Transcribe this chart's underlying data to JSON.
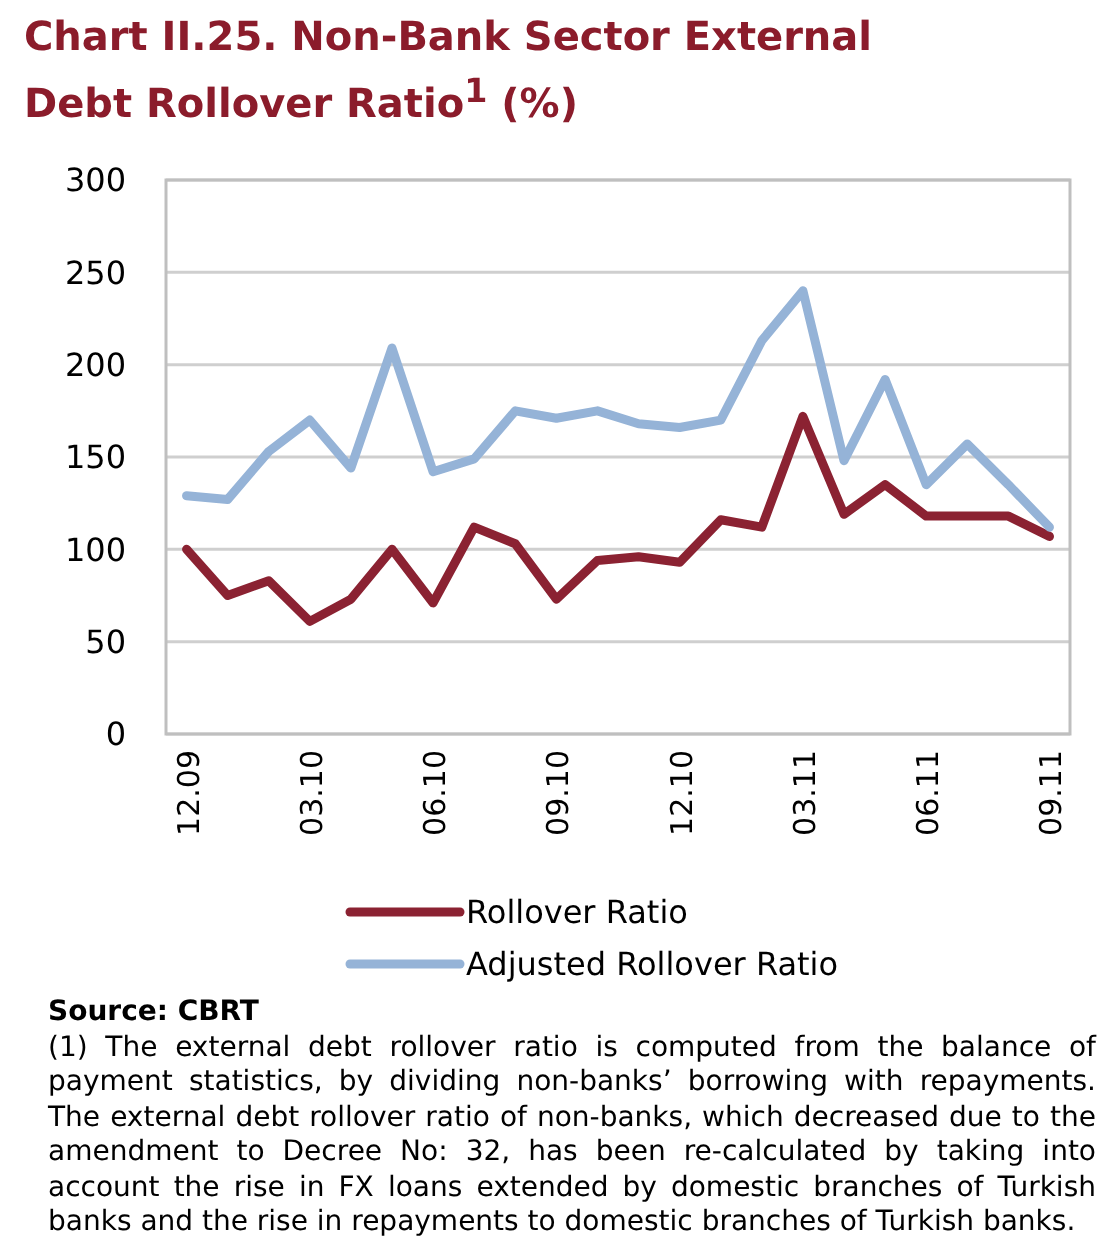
{
  "chart_data": {
    "type": "line",
    "title": "Chart II.25. Non-Bank Sector External Debt Rollover Ratio$^{1}$ (%)",
    "categories": [
      "12.09",
      null,
      null,
      "03.10",
      null,
      null,
      "06.10",
      null,
      null,
      "09.10",
      null,
      null,
      "12.10",
      null,
      null,
      "03.11",
      null,
      null,
      "06.11",
      null,
      null,
      "09.11"
    ],
    "series": [
      {
        "name": "Rollover Ratio",
        "color": "#8b2232",
        "values": [
          100,
          75,
          83,
          61,
          73,
          100,
          71,
          112,
          103,
          73,
          94,
          96,
          93,
          116,
          112,
          172,
          119,
          135,
          118,
          118,
          118,
          107
        ]
      },
      {
        "name": "Adjusted Rollover Ratio",
        "color": "#95b3d7",
        "values": [
          129,
          127,
          153,
          170,
          144,
          209,
          142,
          149,
          175,
          171,
          175,
          168,
          166,
          170,
          213,
          240,
          148,
          192,
          135,
          157,
          135,
          112
        ]
      }
    ],
    "ylim": [
      0,
      300
    ],
    "yticks": [
      0,
      50,
      100,
      150,
      200,
      250,
      300
    ],
    "grid": "y",
    "legend": "bottom",
    "line_style": "solid",
    "marker": "none",
    "annotations": [
      "Source: CBRT",
      "(1) The external debt rollover ratio is computed from the balance of payment statistics, by dividing non-banks’ borrowing with repayments. The external debt rollover ratio of non-banks, which decreased due to the amendment to Decree No: 32, has been re-calculated by taking into account the rise in FX loans extended by domestic branches of Turkish banks and the rise in repayments to domestic branches of Turkish banks."
    ]
  }
}
